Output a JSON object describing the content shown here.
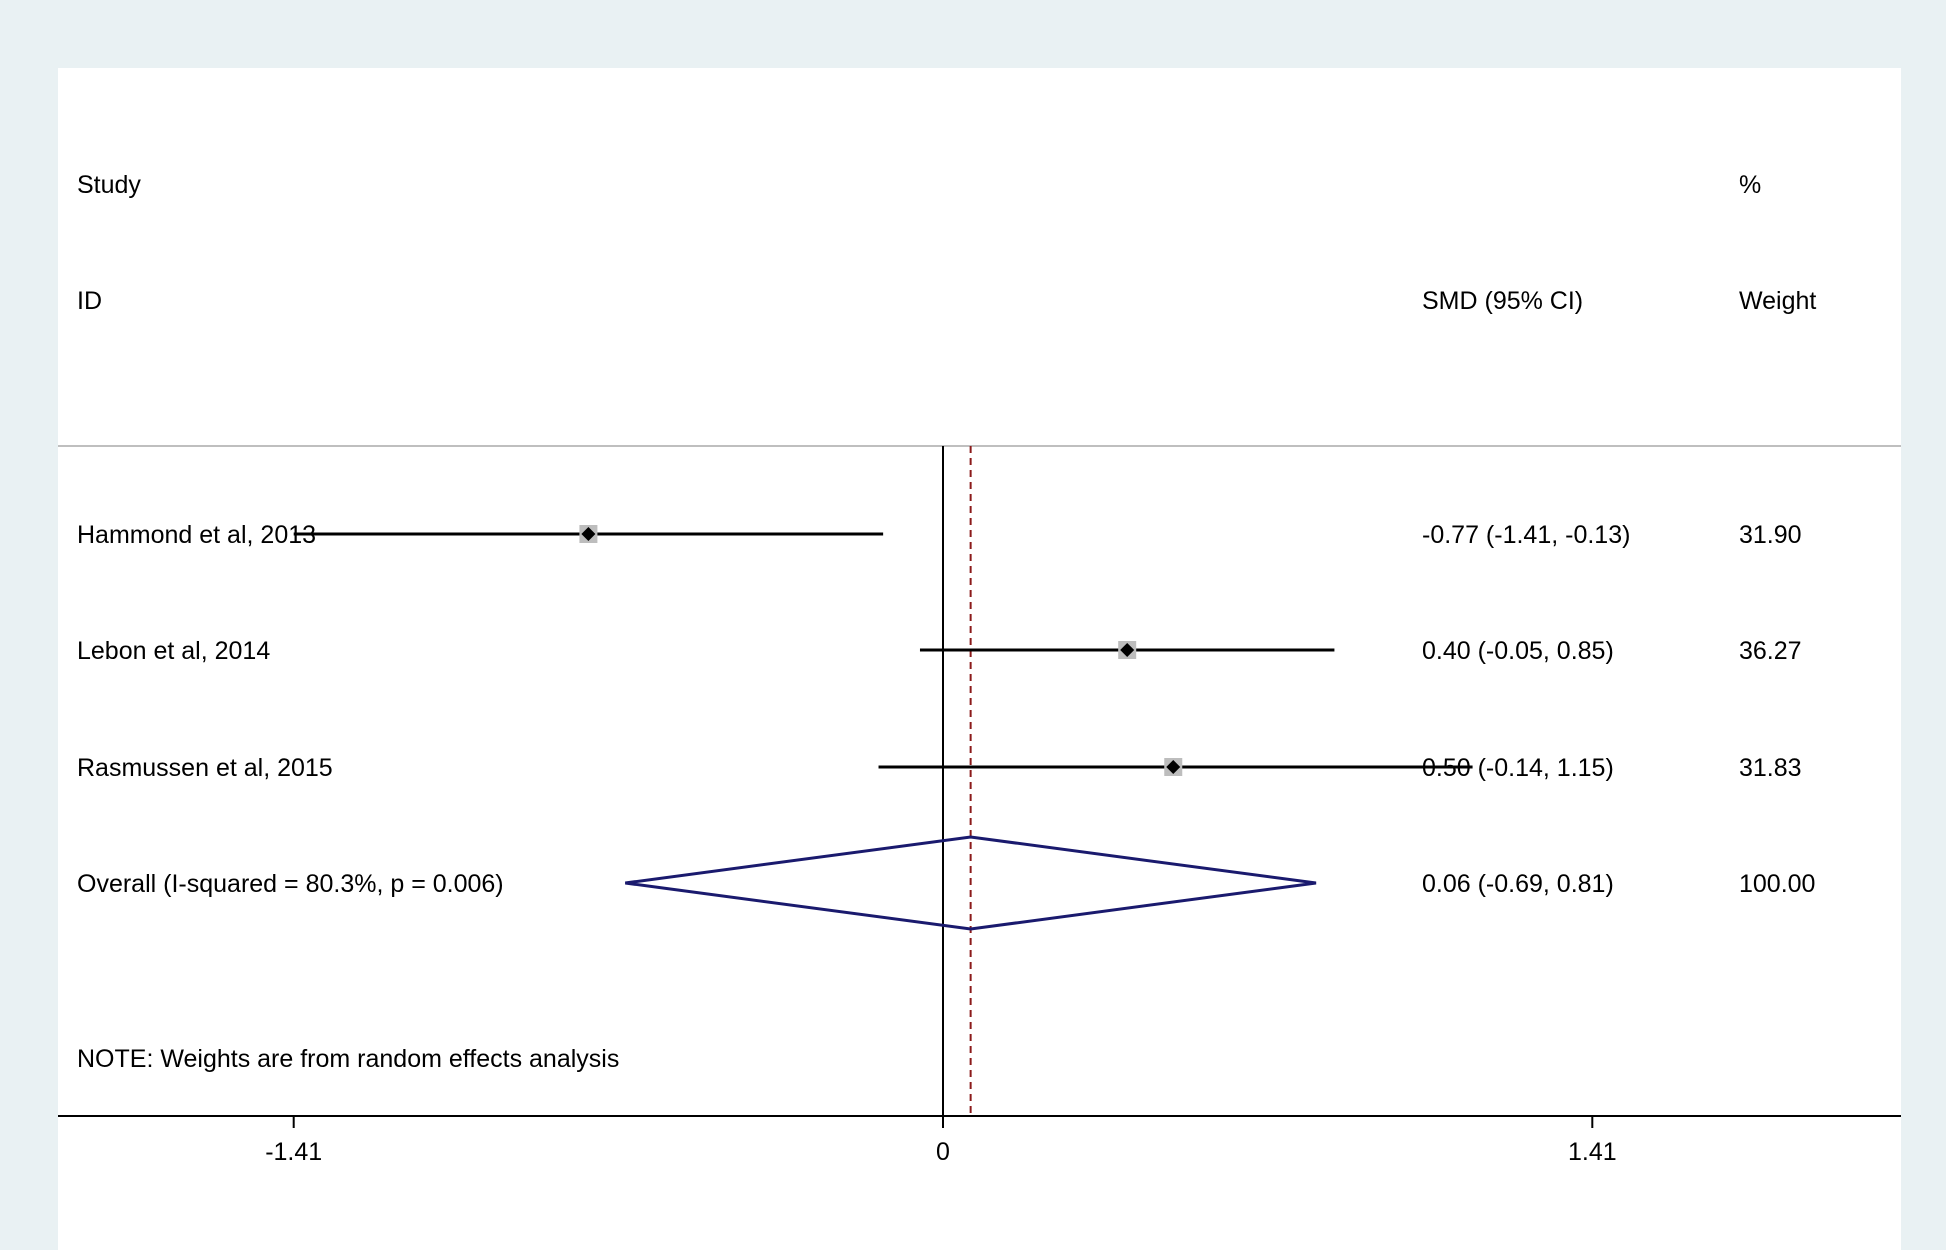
{
  "chart_data": {
    "type": "forest",
    "headers": {
      "study_line1": "Study",
      "study_line2": "ID",
      "effect": "SMD (95% CI)",
      "weight_line1": "%",
      "weight_line2": "Weight"
    },
    "studies": [
      {
        "label": "Hammond et al, 2013",
        "smd": -0.77,
        "lower": -1.41,
        "upper": -0.13,
        "ci_text": "-0.77 (-1.41, -0.13)",
        "weight": "31.90"
      },
      {
        "label": "Lebon et al, 2014",
        "smd": 0.4,
        "lower": -0.05,
        "upper": 0.85,
        "ci_text": "0.40 (-0.05, 0.85)",
        "weight": "36.27"
      },
      {
        "label": "Rasmussen et al, 2015",
        "smd": 0.5,
        "lower": -0.14,
        "upper": 1.15,
        "ci_text": "0.50 (-0.14, 1.15)",
        "weight": "31.83"
      }
    ],
    "overall": {
      "label": "Overall  (I-squared = 80.3%, p = 0.006)",
      "smd": 0.06,
      "lower": -0.69,
      "upper": 0.81,
      "ci_text": "0.06 (-0.69, 0.81)",
      "weight": "100.00"
    },
    "note": "NOTE: Weights are from random effects analysis",
    "x_ticks": [
      {
        "value": -1.41,
        "label": "-1.41"
      },
      {
        "value": 0,
        "label": "0"
      },
      {
        "value": 1.41,
        "label": "1.41"
      }
    ],
    "xlim": [
      -1.41,
      1.41
    ],
    "colors": {
      "ci_line": "#000000",
      "weight_box": "#bdbdbd",
      "diamond": "#1a1a6e",
      "overall_line": "#8b1a1a",
      "separator": "#bfbfbf"
    }
  }
}
